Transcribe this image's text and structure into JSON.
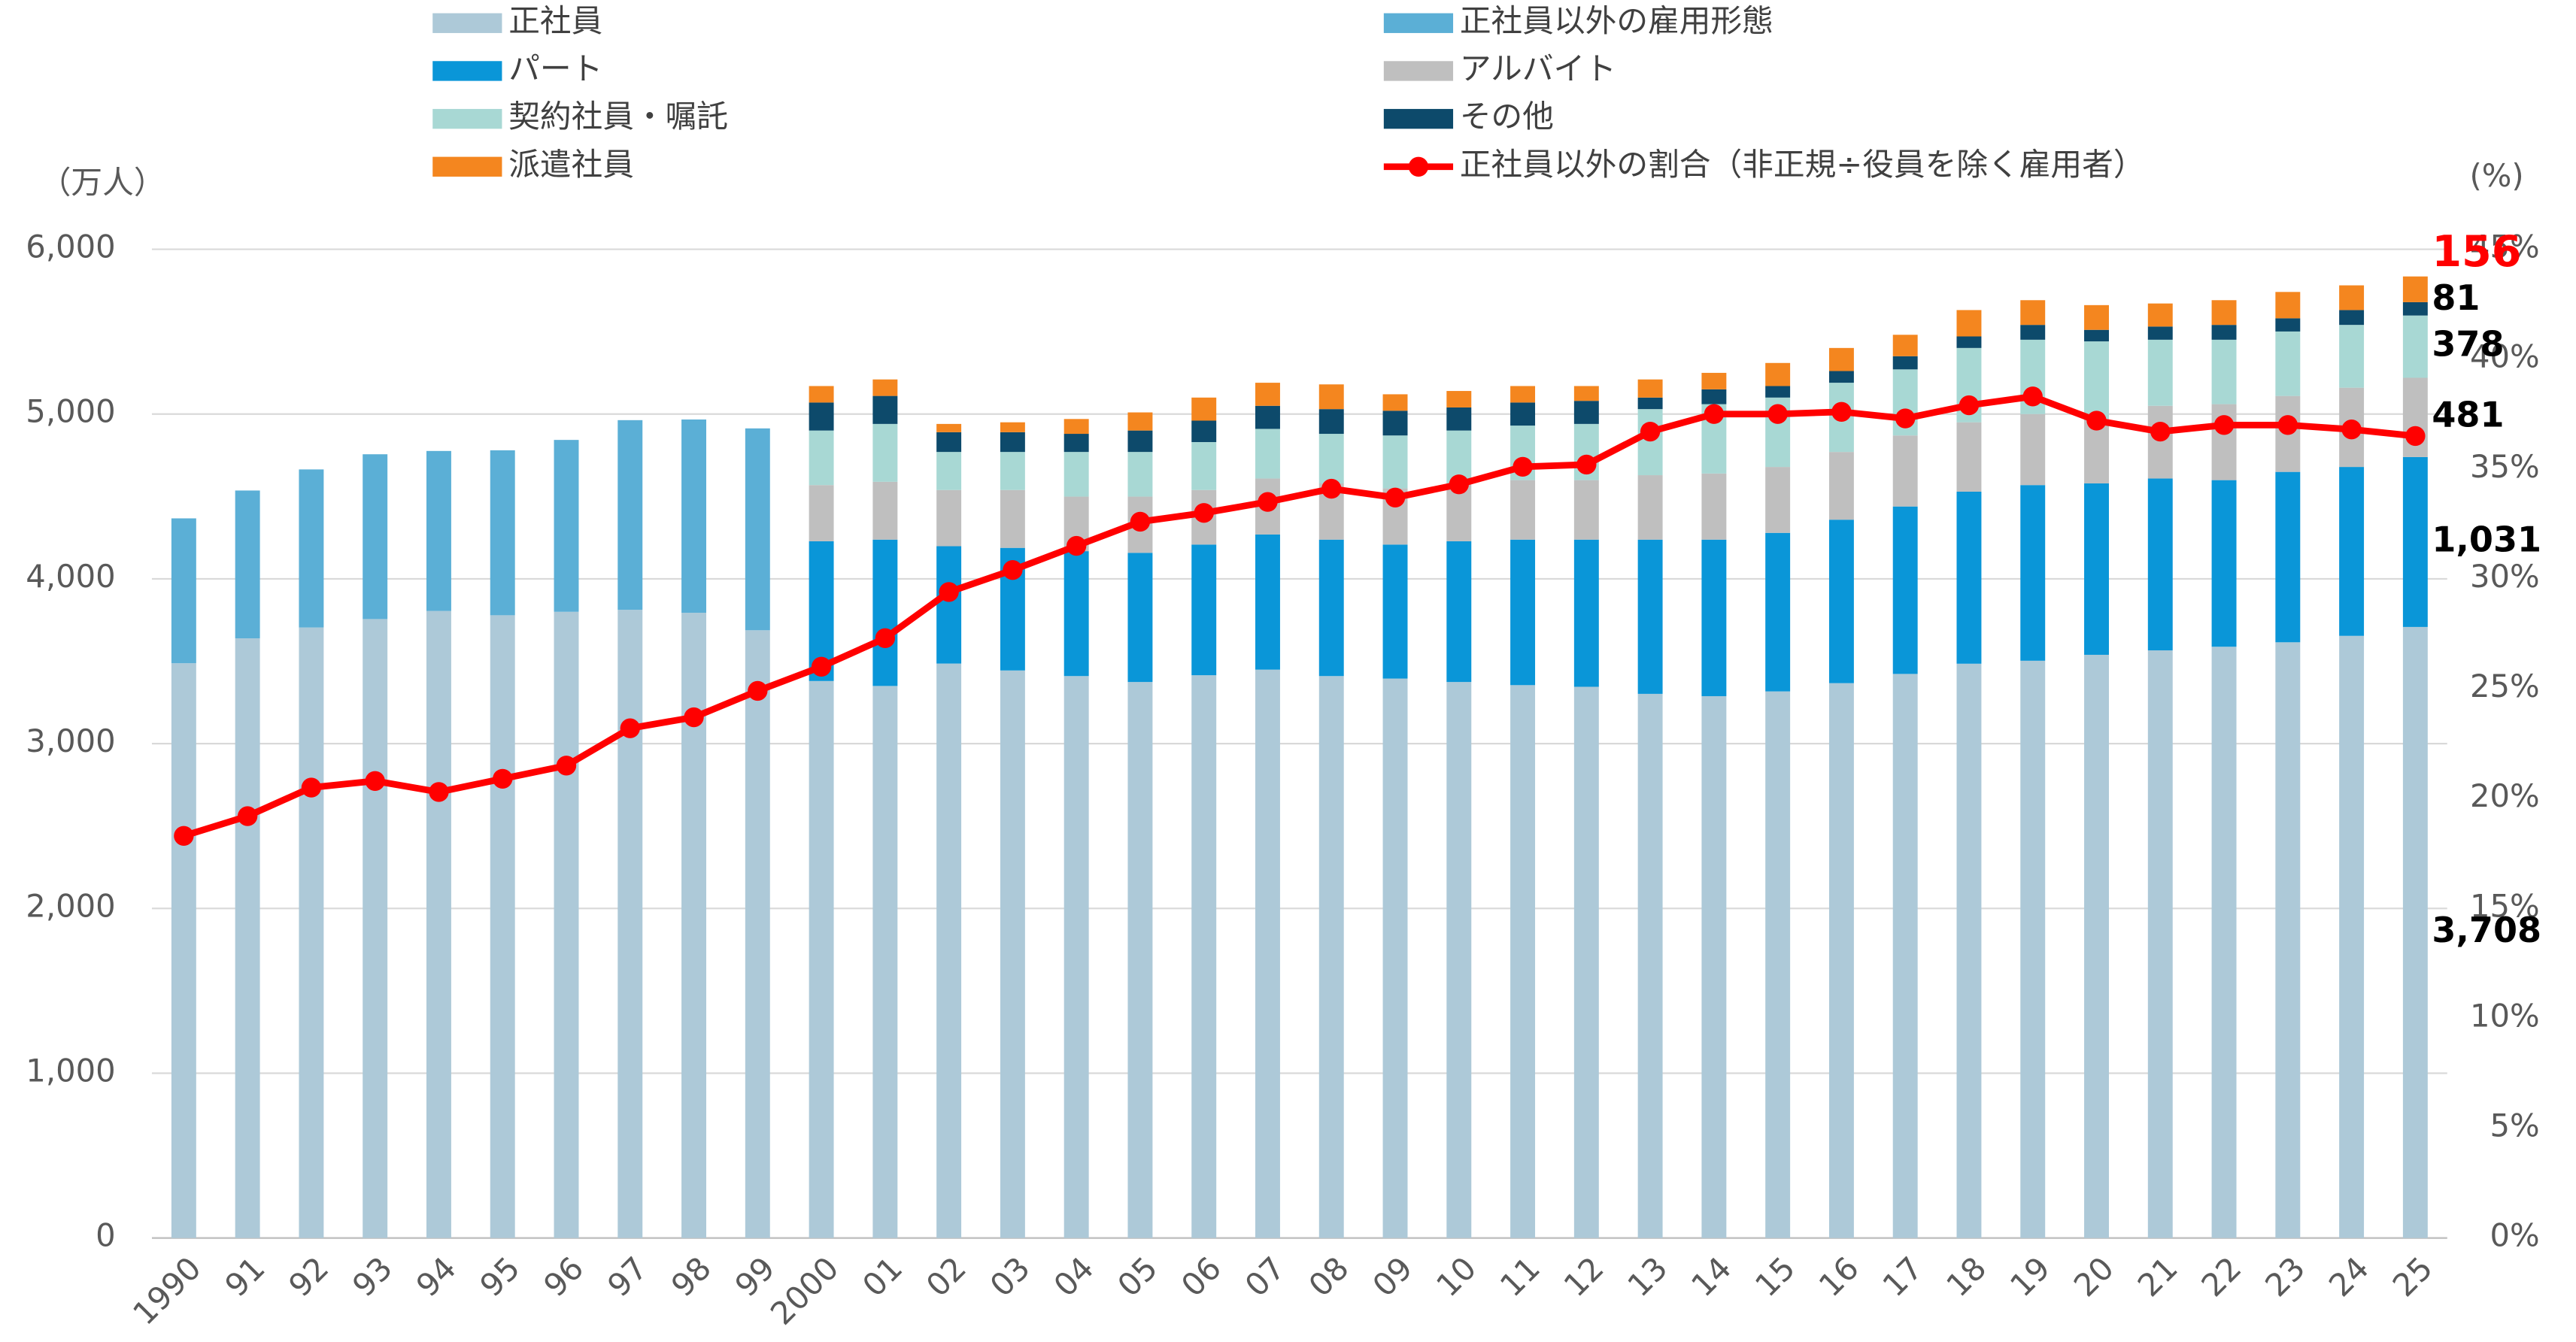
{
  "chart_data": {
    "type": "bar",
    "y_axis_label": "（万人）",
    "y2_axis_label": "(%)",
    "categories": [
      "1990",
      "91",
      "92",
      "93",
      "94",
      "95",
      "96",
      "97",
      "98",
      "99",
      "2000",
      "01",
      "02",
      "03",
      "04",
      "05",
      "06",
      "07",
      "08",
      "09",
      "10",
      "11",
      "12",
      "13",
      "14",
      "15",
      "16",
      "17",
      "18",
      "19",
      "20",
      "21",
      "22",
      "23",
      "24",
      "25"
    ],
    "ylim": [
      0,
      6000
    ],
    "yticks": [
      0,
      {
        "value": 1000,
        "label": "1,000"
      },
      {
        "value": 2000,
        "label": "2,000"
      },
      {
        "value": 3000,
        "label": "3,000"
      },
      {
        "value": 4000,
        "label": "4,000"
      },
      {
        "value": 5000,
        "label": "5,000"
      },
      {
        "value": 6000,
        "label": "6,000"
      }
    ],
    "y2lim": [
      0,
      45
    ],
    "y2ticks": [
      {
        "value": 0,
        "label": "0%"
      },
      {
        "value": 5,
        "label": "5%"
      },
      {
        "value": 10,
        "label": "10%"
      },
      {
        "value": 15,
        "label": "15%"
      },
      {
        "value": 20,
        "label": "20%"
      },
      {
        "value": 25,
        "label": "25%"
      },
      {
        "value": 30,
        "label": "30%"
      },
      {
        "value": 35,
        "label": "35%"
      },
      {
        "value": 40,
        "label": "40%"
      },
      {
        "value": 45,
        "label": "45%"
      }
    ],
    "grid": true,
    "stacked": true,
    "series": [
      {
        "name": "正社員",
        "color": "#adc9d8",
        "values": [
          3488,
          3639,
          3705,
          3756,
          3805,
          3779,
          3800,
          3812,
          3794,
          3688,
          3380,
          3350,
          3486,
          3444,
          3410,
          3374,
          3415,
          3449,
          3410,
          3395,
          3374,
          3355,
          3345,
          3302,
          3288,
          3317,
          3367,
          3423,
          3485,
          3503,
          3539,
          3566,
          3588,
          3615,
          3654,
          3708
        ],
        "value_labels": [
          null,
          null,
          null,
          null,
          null,
          null,
          null,
          null,
          null,
          null,
          null,
          null,
          null,
          null,
          null,
          null,
          null,
          null,
          null,
          null,
          null,
          null,
          null,
          null,
          null,
          null,
          null,
          null,
          null,
          null,
          null,
          null,
          null,
          null,
          null,
          "3,708"
        ]
      },
      {
        "name": "正社員以外の雇用形態",
        "color": "#5bafd6",
        "values": [
          879,
          897,
          959,
          1000,
          971,
          1001,
          1043,
          1151,
          1173,
          1225,
          null,
          null,
          null,
          null,
          null,
          null,
          null,
          null,
          null,
          null,
          null,
          null,
          null,
          null,
          null,
          null,
          null,
          null,
          null,
          null,
          null,
          null,
          null,
          null,
          null,
          null
        ]
      },
      {
        "name": "パート",
        "color": "#0a96d8",
        "values": [
          null,
          null,
          null,
          null,
          null,
          null,
          null,
          null,
          null,
          null,
          848,
          888,
          712,
          744,
          758,
          784,
          793,
          820,
          828,
          813,
          854,
          883,
          893,
          936,
          950,
          962,
          992,
          1016,
          1044,
          1066,
          1040,
          1043,
          1011,
          1034,
          1025,
          1031
        ],
        "value_labels": [
          null,
          null,
          null,
          null,
          null,
          null,
          null,
          null,
          null,
          null,
          null,
          null,
          null,
          null,
          null,
          null,
          null,
          null,
          null,
          null,
          null,
          null,
          null,
          null,
          null,
          null,
          null,
          null,
          null,
          null,
          null,
          null,
          null,
          null,
          null,
          "1,031"
        ]
      },
      {
        "name": "アルバイト",
        "color": "#bfbfbf",
        "values": [
          null,
          null,
          null,
          null,
          null,
          null,
          null,
          null,
          null,
          null,
          341,
          351,
          341,
          351,
          331,
          341,
          331,
          340,
          341,
          341,
          351,
          361,
          361,
          391,
          401,
          400,
          411,
          431,
          421,
          431,
          391,
          441,
          461,
          461,
          481,
          481
        ]
      },
      {
        "name": "契約社員・嘱託",
        "color": "#a8d8d4",
        "values": [
          null,
          null,
          null,
          null,
          null,
          null,
          null,
          null,
          null,
          null,
          331,
          351,
          231,
          231,
          271,
          271,
          291,
          301,
          301,
          321,
          321,
          331,
          341,
          401,
          421,
          421,
          420,
          401,
          451,
          451,
          471,
          401,
          391,
          391,
          381,
          378
        ]
      },
      {
        "name": "その他",
        "color": "#0d4a6b",
        "values": [
          null,
          null,
          null,
          null,
          null,
          null,
          null,
          null,
          null,
          null,
          170,
          170,
          120,
          120,
          110,
          130,
          130,
          140,
          150,
          150,
          140,
          140,
          140,
          70,
          90,
          70,
          71,
          80,
          70,
          90,
          70,
          80,
          90,
          80,
          90,
          81
        ]
      },
      {
        "name": "派遣社員",
        "color": "#f4861f",
        "label_color": "#ff0000",
        "values": [
          null,
          null,
          null,
          null,
          null,
          null,
          null,
          null,
          null,
          null,
          100,
          100,
          50,
          60,
          90,
          110,
          140,
          140,
          150,
          100,
          100,
          100,
          90,
          110,
          100,
          140,
          140,
          130,
          160,
          150,
          150,
          140,
          150,
          160,
          150,
          156
        ]
      },
      {
        "name": "正社員以外の割合（非正規÷役員を除く雇用者）",
        "color": "#ff0000",
        "type": "line",
        "axis": "y2",
        "values": [
          18.3,
          19.2,
          20.5,
          20.8,
          20.3,
          20.9,
          21.5,
          23.2,
          23.7,
          24.9,
          26.0,
          27.3,
          29.4,
          30.4,
          31.5,
          32.6,
          33.0,
          33.5,
          34.1,
          33.7,
          34.3,
          35.1,
          35.2,
          36.7,
          37.5,
          37.5,
          37.6,
          37.3,
          37.9,
          38.3,
          37.2,
          36.7,
          37.0,
          37.0,
          36.8,
          36.5
        ]
      }
    ]
  }
}
